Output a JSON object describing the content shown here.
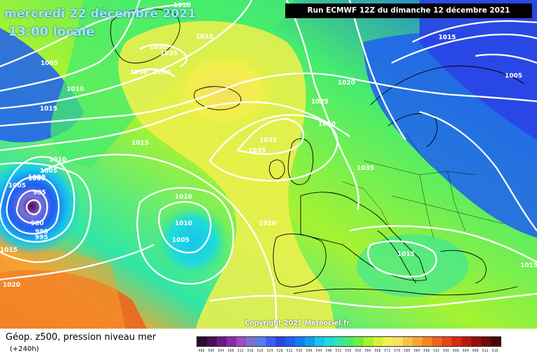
{
  "header": {
    "date_line": "mercredi 22 décembre 2021",
    "time_line": "13:00 locale",
    "run_info": "Run ECMWF 12Z du dimanche 12 décembre 2021"
  },
  "copyright": "Copyright 2021 Meteociel.fr",
  "legend": {
    "title": "Géop. z500, pression niveau mer",
    "subtitle": "(+240h)",
    "scale_values": [
      "496",
      "500",
      "504",
      "508",
      "512",
      "516",
      "520",
      "524",
      "528",
      "532",
      "536",
      "540",
      "544",
      "548",
      "552",
      "556",
      "560",
      "564",
      "568",
      "572",
      "576",
      "580",
      "584",
      "588",
      "592",
      "596",
      "600",
      "604",
      "608",
      "612",
      "616"
    ],
    "scale_colors": [
      "#2a0a2e",
      "#4b0d52",
      "#6c1880",
      "#8a2aa6",
      "#9a4cc0",
      "#7c6ed6",
      "#5a7ee8",
      "#3a5ef0",
      "#2a44e6",
      "#1e5ef2",
      "#0f7cf4",
      "#109ef0",
      "#16c4ee",
      "#20dcd8",
      "#30e6a6",
      "#46ec6e",
      "#6ef03e",
      "#a6f232",
      "#d6f238",
      "#f2f04c",
      "#f6e060",
      "#f6c24a",
      "#f6a432",
      "#f28424",
      "#ee621c",
      "#e64418",
      "#d62a14",
      "#b81810",
      "#96100c",
      "#740a08",
      "#4e0604"
    ]
  },
  "isobars": [
    "1010",
    "1015",
    "1030",
    "1035",
    "1030",
    "1030",
    "1015",
    "1010",
    "1005",
    "1010",
    "1015",
    "1020",
    "1025",
    "1030",
    "1035",
    "1035",
    "1035",
    "1015",
    "1010",
    "1005",
    "1015",
    "1010",
    "1005",
    "1000",
    "1005",
    "985",
    "980",
    "990",
    "995",
    "1000",
    "1010",
    "1020",
    "1015",
    "1005",
    "1020",
    "1015",
    "1015",
    "1025",
    "1015"
  ]
}
